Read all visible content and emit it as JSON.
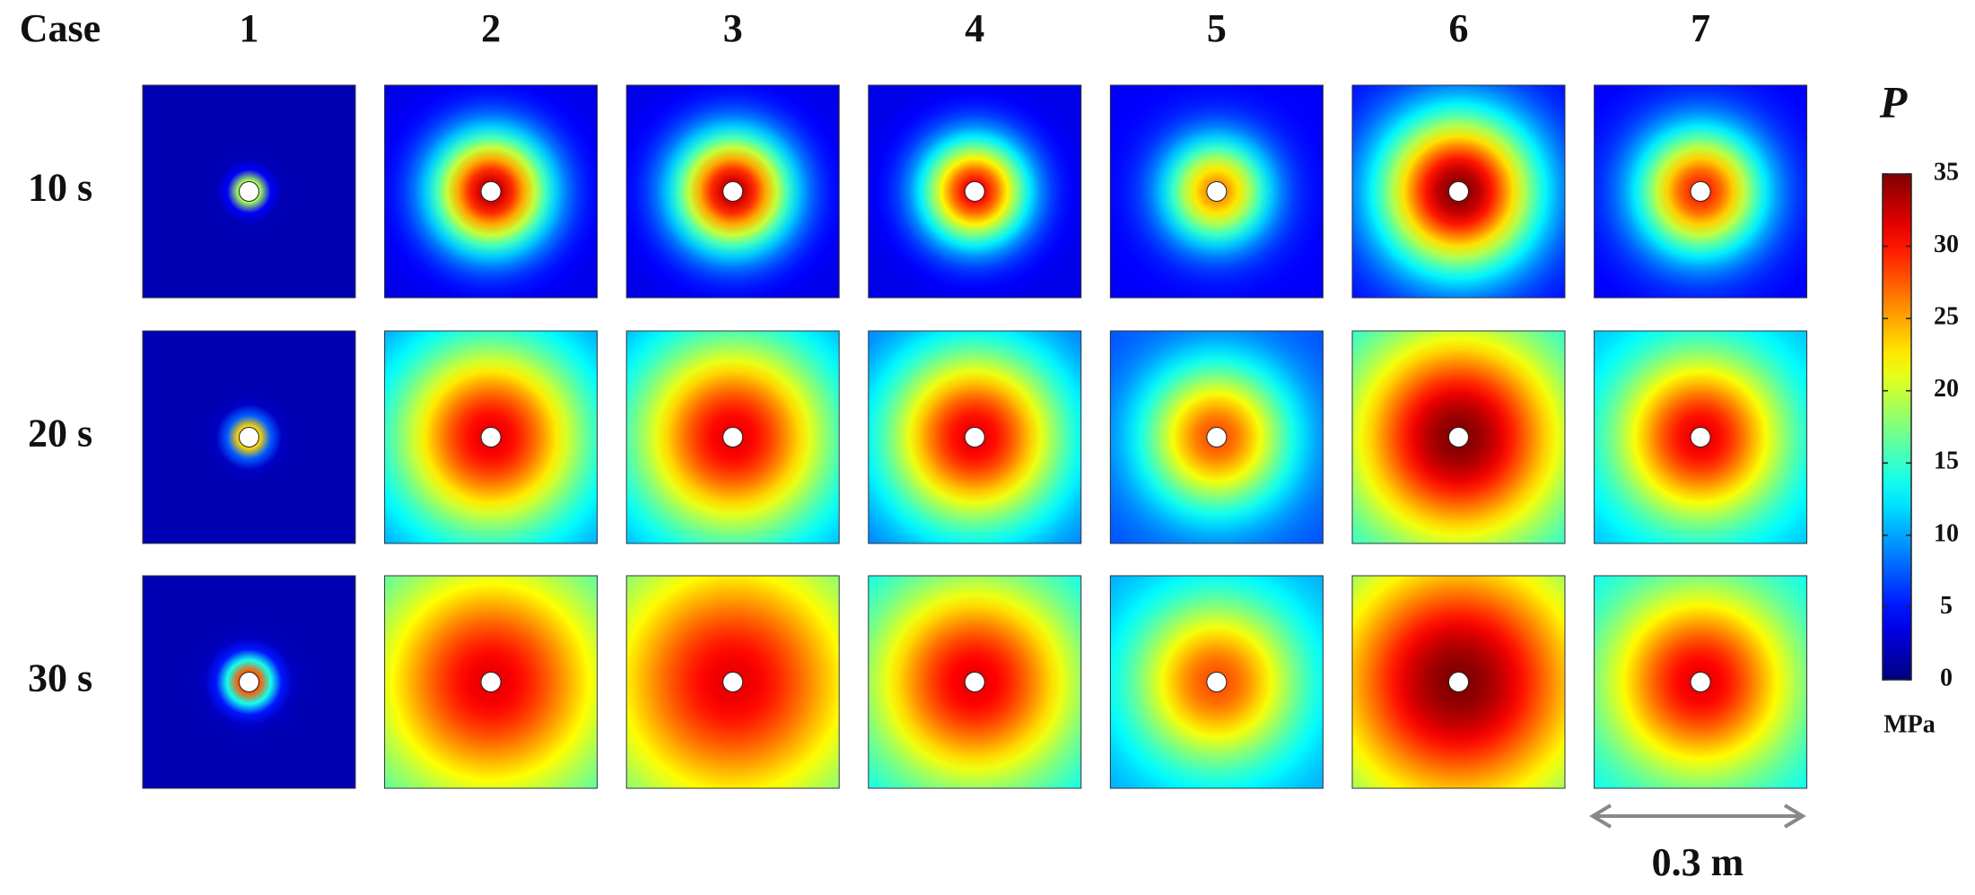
{
  "header": {
    "corner": "Case",
    "columns": [
      "1",
      "2",
      "3",
      "4",
      "5",
      "6",
      "7"
    ]
  },
  "rows": [
    "10 s",
    "20 s",
    "30 s"
  ],
  "colorbar": {
    "title": "P",
    "unit": "MPa",
    "range": [
      0,
      35
    ],
    "ticks": [
      0,
      5,
      10,
      15,
      20,
      25,
      30,
      35
    ]
  },
  "scale_bar": {
    "label": "0.3 m"
  }
}
